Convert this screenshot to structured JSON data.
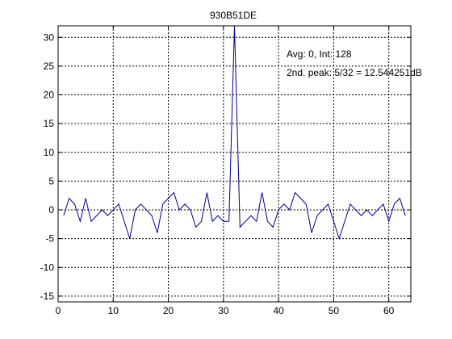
{
  "chart_data": {
    "type": "line",
    "title": "930B51DE",
    "xlabel": "",
    "ylabel": "",
    "xlim": [
      0,
      64
    ],
    "ylim": [
      -16,
      32
    ],
    "xticks": [
      0,
      10,
      20,
      30,
      40,
      50,
      60
    ],
    "yticks": [
      -15,
      -10,
      -5,
      0,
      5,
      10,
      15,
      20,
      25,
      30
    ],
    "grid": true,
    "grid_style": "dotted",
    "line_color": "#00008b",
    "annotations": [
      "Avg: 0, Int: 128",
      "2nd. peak: 5/32 = 12.544251dB"
    ],
    "series": [
      {
        "x": [
          1,
          2,
          3,
          4,
          5,
          6,
          7,
          8,
          9,
          10,
          11,
          12,
          13,
          14,
          15,
          16,
          17,
          18,
          19,
          20,
          21,
          22,
          23,
          24,
          25,
          26,
          27,
          28,
          29,
          30,
          31,
          32,
          33,
          34,
          35,
          36,
          37,
          38,
          39,
          40,
          41,
          42,
          43,
          44,
          45,
          46,
          47,
          48,
          49,
          50,
          51,
          52,
          53,
          54,
          55,
          56,
          57,
          58,
          59,
          60,
          61,
          62,
          63
        ],
        "values": [
          -1,
          2,
          1,
          -2,
          2,
          -2,
          -1,
          0,
          -1,
          0,
          1,
          -2,
          -5,
          0,
          1,
          0,
          -1,
          -4,
          1,
          2,
          3,
          0,
          1,
          0,
          -3,
          -2,
          3,
          -2,
          -1,
          -2,
          -2,
          32,
          -3,
          -2,
          -1,
          -2,
          3,
          -2,
          -3,
          0,
          1,
          0,
          3,
          2,
          1,
          -4,
          -1,
          0,
          1,
          -2,
          -5,
          -2,
          1,
          0,
          -1,
          0,
          -1,
          0,
          1,
          -2,
          1,
          2,
          -1
        ]
      }
    ]
  }
}
